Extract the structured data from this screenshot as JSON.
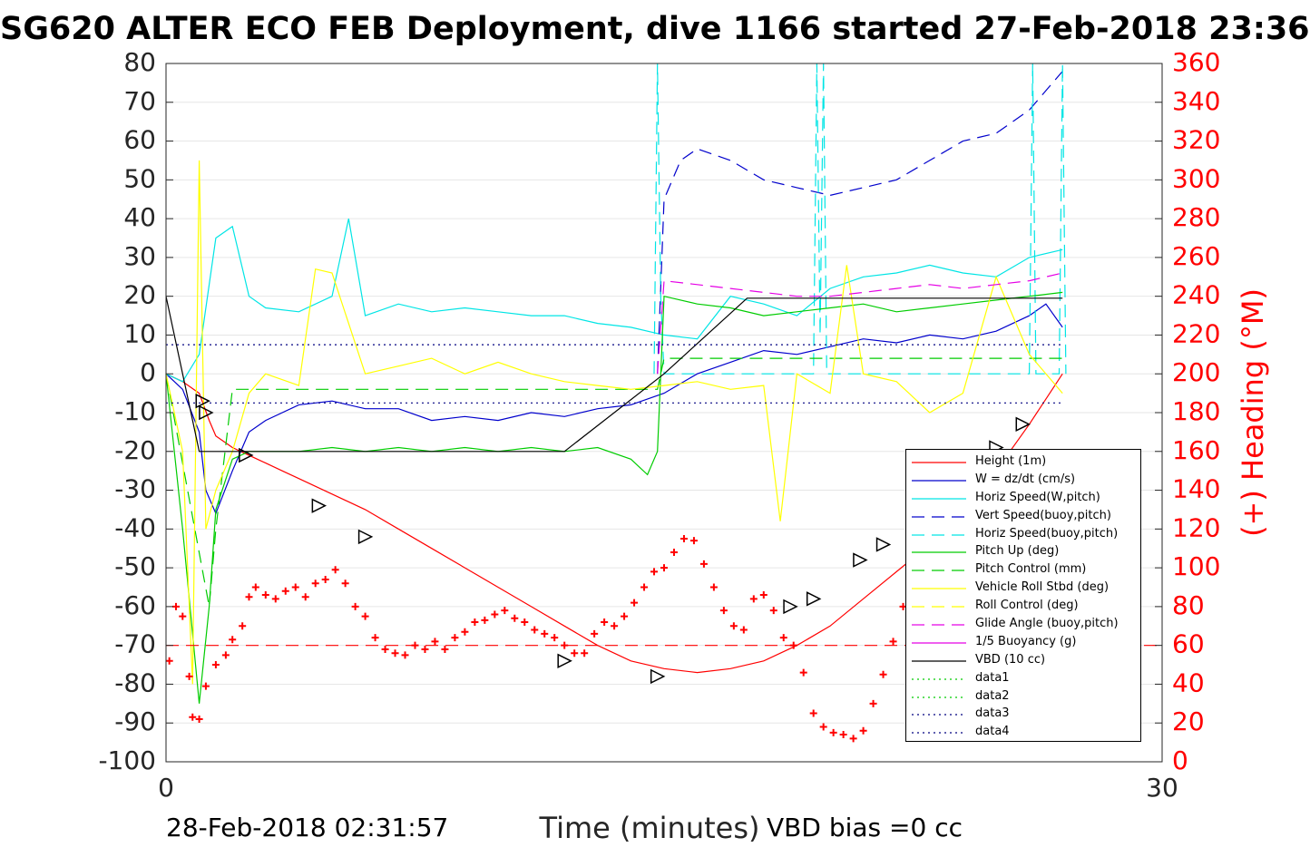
{
  "title": "SG620 ALTER ECO FEB Deployment, dive 1166 started 27-Feb-2018 23:36",
  "footer": {
    "end_time": "28-Feb-2018 02:31:57",
    "vbd_bias": "VBD bias =0 cc"
  },
  "colors": {
    "height": "#ff0000",
    "w": "#0000cc",
    "hspeed": "#00e5e5",
    "vspeed_buoy": "#0000cc",
    "hspeed_buoy": "#00e5e5",
    "pitch_up": "#00cc00",
    "pitch_ctl": "#00cc00",
    "roll": "#ffff00",
    "roll_ctl": "#ffff00",
    "glide": "#e500e5",
    "buoy": "#e500e5",
    "vbd": "#000000",
    "heading": "#ff0000",
    "data_green": "#00cc00",
    "data_blue": "#000080"
  },
  "chart_data": {
    "type": "line",
    "xlabel": "Time (minutes)",
    "ylabel": "",
    "y2label": "(+) Heading (°M)",
    "xlim": [
      0,
      30
    ],
    "ylim": [
      -100,
      80
    ],
    "y2lim": [
      0,
      360
    ],
    "xticks": [
      0,
      30
    ],
    "yticks": [
      80,
      70,
      60,
      50,
      40,
      30,
      20,
      10,
      0,
      -10,
      -20,
      -30,
      -40,
      -50,
      -60,
      -70,
      -80,
      -90,
      -100
    ],
    "y2ticks": [
      360,
      340,
      320,
      300,
      280,
      260,
      240,
      220,
      200,
      180,
      160,
      140,
      120,
      100,
      80,
      60,
      40,
      20,
      0
    ],
    "grid": true,
    "legend_position": "lower-right",
    "series": [
      {
        "name": "Height (1m)",
        "style": "solid",
        "color_key": "height",
        "x": [
          0,
          0.5,
          1.0,
          1.3,
          1.5,
          2.0,
          2.5,
          3.0,
          3.5,
          4.0,
          5.0,
          6.0,
          7.0,
          8.0,
          9.0,
          10.0,
          11.0,
          12.0,
          13.0,
          14.0,
          15.0,
          16.0,
          17.0,
          18.0,
          19.0,
          20.0,
          21.0,
          22.0,
          23.0,
          24.0,
          25.0,
          26.0,
          27.0
        ],
        "y": [
          0,
          -2,
          -5,
          -12,
          -16,
          -19,
          -21,
          -23,
          -25,
          -27,
          -31,
          -35,
          -40,
          -45,
          -50,
          -55,
          -60,
          -65,
          -70,
          -74,
          -76,
          -77,
          -76,
          -74,
          -70,
          -65,
          -58,
          -51,
          -44,
          -35,
          -25,
          -13,
          0
        ]
      },
      {
        "name": "W = dz/dt (cm/s)",
        "style": "solid",
        "color_key": "w",
        "x": [
          0,
          0.5,
          1.0,
          1.2,
          1.5,
          2.0,
          2.5,
          3.0,
          4.0,
          5.0,
          6.0,
          7.0,
          8.0,
          9.0,
          10.0,
          11.0,
          12.0,
          13.0,
          14.0,
          15.0,
          16.0,
          17.0,
          18.0,
          19.0,
          20.0,
          21.0,
          22.0,
          23.0,
          24.0,
          25.0,
          26.0,
          26.5,
          27.0
        ],
        "y": [
          0,
          -4,
          -15,
          -30,
          -36,
          -25,
          -15,
          -12,
          -8,
          -7,
          -9,
          -9,
          -12,
          -11,
          -12,
          -10,
          -11,
          -9,
          -8,
          -5,
          0,
          3,
          6,
          5,
          7,
          9,
          8,
          10,
          9,
          11,
          15,
          18,
          12
        ]
      },
      {
        "name": "Horiz Speed(W,pitch)",
        "style": "solid",
        "color_key": "hspeed",
        "x": [
          0,
          0.5,
          1.0,
          1.5,
          2.0,
          2.5,
          3.0,
          4.0,
          5.0,
          5.5,
          6.0,
          7.0,
          8.0,
          9.0,
          10.0,
          11.0,
          12.0,
          13.0,
          14.0,
          15.0,
          16.0,
          17.0,
          18.0,
          19.0,
          20.0,
          21.0,
          22.0,
          23.0,
          24.0,
          25.0,
          26.0,
          27.0
        ],
        "y": [
          0,
          -2,
          5,
          35,
          38,
          20,
          17,
          16,
          20,
          40,
          15,
          18,
          16,
          17,
          16,
          15,
          15,
          13,
          12,
          10,
          9,
          20,
          18,
          15,
          22,
          25,
          26,
          28,
          26,
          25,
          30,
          32
        ]
      },
      {
        "name": "Vert Speed(buoy,pitch)",
        "style": "dashed",
        "color_key": "vspeed_buoy",
        "x": [
          14.8,
          15.0,
          15.5,
          16.0,
          17.0,
          18.0,
          19.0,
          20.0,
          21.0,
          22.0,
          23.0,
          24.0,
          25.0,
          26.0,
          27.0
        ],
        "y": [
          0,
          45,
          55,
          58,
          55,
          50,
          48,
          46,
          48,
          50,
          55,
          60,
          62,
          68,
          78
        ]
      },
      {
        "name": "Horiz Speed(buoy,pitch)",
        "style": "dashed",
        "color_key": "hspeed_buoy",
        "x": [
          14.7,
          14.8,
          14.9,
          15.0,
          19.5,
          19.6,
          19.7,
          19.8,
          19.9,
          26.0,
          26.1,
          26.2,
          26.9,
          27.0,
          27.1
        ],
        "y": [
          0,
          80,
          20,
          0,
          0,
          80,
          10,
          80,
          0,
          0,
          80,
          0,
          0,
          80,
          0
        ]
      },
      {
        "name": "Pitch Up (deg)",
        "style": "solid",
        "color_key": "pitch_up",
        "x": [
          0,
          0.5,
          1.0,
          1.3,
          1.5,
          2.0,
          2.5,
          3.0,
          4.0,
          5.0,
          6.0,
          7.0,
          8.0,
          9.0,
          10.0,
          11.0,
          12.0,
          13.0,
          14.0,
          14.5,
          14.8,
          15.0,
          16.0,
          17.0,
          18.0,
          19.0,
          20.0,
          21.0,
          22.0,
          23.0,
          24.0,
          25.0,
          26.0,
          27.0
        ],
        "y": [
          0,
          -40,
          -85,
          -60,
          -35,
          -22,
          -20,
          -20,
          -20,
          -19,
          -20,
          -19,
          -20,
          -19,
          -20,
          -19,
          -20,
          -19,
          -22,
          -26,
          -20,
          20,
          18,
          17,
          15,
          16,
          17,
          18,
          16,
          17,
          18,
          19,
          20,
          21
        ]
      },
      {
        "name": "Pitch Control (mm)",
        "style": "dashed",
        "color_key": "pitch_ctl",
        "x": [
          0,
          1.3,
          1.5,
          2.0,
          14.8,
          15.0,
          27.0
        ],
        "y": [
          0,
          -60,
          -40,
          -4,
          -4,
          4,
          4
        ]
      },
      {
        "name": "Vehicle Roll Stbd (deg)",
        "style": "solid",
        "color_key": "roll",
        "x": [
          0,
          0.5,
          0.8,
          1.0,
          1.2,
          1.5,
          2.0,
          2.5,
          3.0,
          4.0,
          4.5,
          5.0,
          6.0,
          7.0,
          8.0,
          9.0,
          10.0,
          11.0,
          12.0,
          13.0,
          14.0,
          15.0,
          16.0,
          17.0,
          18.0,
          18.5,
          19.0,
          20.0,
          20.5,
          21.0,
          22.0,
          23.0,
          24.0,
          25.0,
          26.0,
          27.0
        ],
        "y": [
          0,
          -20,
          -80,
          55,
          -40,
          -30,
          -20,
          -5,
          0,
          -3,
          27,
          26,
          0,
          2,
          4,
          0,
          3,
          0,
          -2,
          -3,
          -4,
          -3,
          -2,
          -4,
          -3,
          -38,
          0,
          -5,
          28,
          0,
          -2,
          -10,
          -5,
          25,
          5,
          -5
        ]
      },
      {
        "name": "Roll Control (deg)",
        "style": "dashed",
        "color_key": "roll_ctl",
        "x": [],
        "y": []
      },
      {
        "name": "Glide Angle (buoy,pitch)",
        "style": "dashed",
        "color_key": "glide",
        "x": [
          14.8,
          15.0,
          16.0,
          17.0,
          18.0,
          19.0,
          20.0,
          21.0,
          22.0,
          23.0,
          24.0,
          25.0,
          26.0,
          27.0
        ],
        "y": [
          0,
          24,
          23,
          22,
          21,
          20,
          20,
          21,
          22,
          23,
          22,
          23,
          24,
          26
        ]
      },
      {
        "name": "1/5 Buoyancy (g)",
        "style": "solid",
        "color_key": "buoy",
        "x": [],
        "y": []
      },
      {
        "name": "VBD (10 cc)",
        "style": "solid",
        "color_key": "vbd",
        "x": [
          0,
          1.0,
          3.0,
          12.0,
          15.0,
          17.5,
          27.0
        ],
        "y": [
          20,
          -20,
          -20,
          -20,
          0,
          19.5,
          19.5
        ]
      },
      {
        "name": "data1",
        "style": "dotted",
        "color_key": "data_green",
        "x": [],
        "y": []
      },
      {
        "name": "data2",
        "style": "dotted",
        "color_key": "data_green",
        "x": [],
        "y": []
      },
      {
        "name": "data3",
        "style": "dotted",
        "color_key": "data_blue",
        "x": [
          0,
          27
        ],
        "y": [
          7.5,
          7.5
        ]
      },
      {
        "name": "data4",
        "style": "dotted",
        "color_key": "data_blue",
        "x": [
          0,
          27
        ],
        "y": [
          -7.5,
          -7.5
        ]
      }
    ],
    "heading_series": {
      "axis": "right",
      "marker": "+",
      "color_key": "heading",
      "reference_line": {
        "value": 60,
        "style": "dashed"
      },
      "x": [
        0.1,
        0.3,
        0.5,
        0.7,
        0.8,
        1.0,
        1.2,
        1.5,
        1.8,
        2.0,
        2.3,
        2.5,
        2.7,
        3.0,
        3.3,
        3.6,
        3.9,
        4.2,
        4.5,
        4.8,
        5.1,
        5.4,
        5.7,
        6.0,
        6.3,
        6.6,
        6.9,
        7.2,
        7.5,
        7.8,
        8.1,
        8.4,
        8.7,
        9.0,
        9.3,
        9.6,
        9.9,
        10.2,
        10.5,
        10.8,
        11.1,
        11.4,
        11.7,
        12.0,
        12.3,
        12.6,
        12.9,
        13.2,
        13.5,
        13.8,
        14.1,
        14.4,
        14.7,
        15.0,
        15.3,
        15.6,
        15.9,
        16.2,
        16.5,
        16.8,
        17.1,
        17.4,
        17.7,
        18.0,
        18.3,
        18.6,
        18.9,
        19.2,
        19.5,
        19.8,
        20.1,
        20.4,
        20.7,
        21.0,
        21.3,
        21.6,
        21.9,
        22.2,
        22.5,
        22.8
      ],
      "y": [
        52,
        80,
        75,
        44,
        23,
        22,
        39,
        50,
        55,
        63,
        70,
        85,
        90,
        86,
        84,
        88,
        90,
        85,
        92,
        94,
        99,
        92,
        80,
        75,
        64,
        58,
        56,
        55,
        60,
        58,
        62,
        58,
        64,
        67,
        72,
        73,
        76,
        78,
        74,
        72,
        68,
        66,
        64,
        60,
        56,
        56,
        66,
        72,
        70,
        75,
        82,
        90,
        98,
        100,
        108,
        115,
        114,
        102,
        90,
        78,
        70,
        68,
        84,
        86,
        78,
        64,
        60,
        46,
        25,
        18,
        15,
        14,
        12,
        16,
        30,
        45,
        62,
        80,
        95,
        100
      ]
    },
    "triangle_markers": [
      {
        "x": 1.1,
        "y": -7
      },
      {
        "x": 1.2,
        "y": -10
      },
      {
        "x": 2.4,
        "y": -21
      },
      {
        "x": 4.6,
        "y": -34
      },
      {
        "x": 6.0,
        "y": -42
      },
      {
        "x": 12.0,
        "y": -74
      },
      {
        "x": 14.8,
        "y": -78
      },
      {
        "x": 18.8,
        "y": -60
      },
      {
        "x": 19.5,
        "y": -58
      },
      {
        "x": 20.9,
        "y": -48
      },
      {
        "x": 21.6,
        "y": -44
      },
      {
        "x": 25.0,
        "y": -19
      },
      {
        "x": 25.8,
        "y": -13
      }
    ]
  }
}
